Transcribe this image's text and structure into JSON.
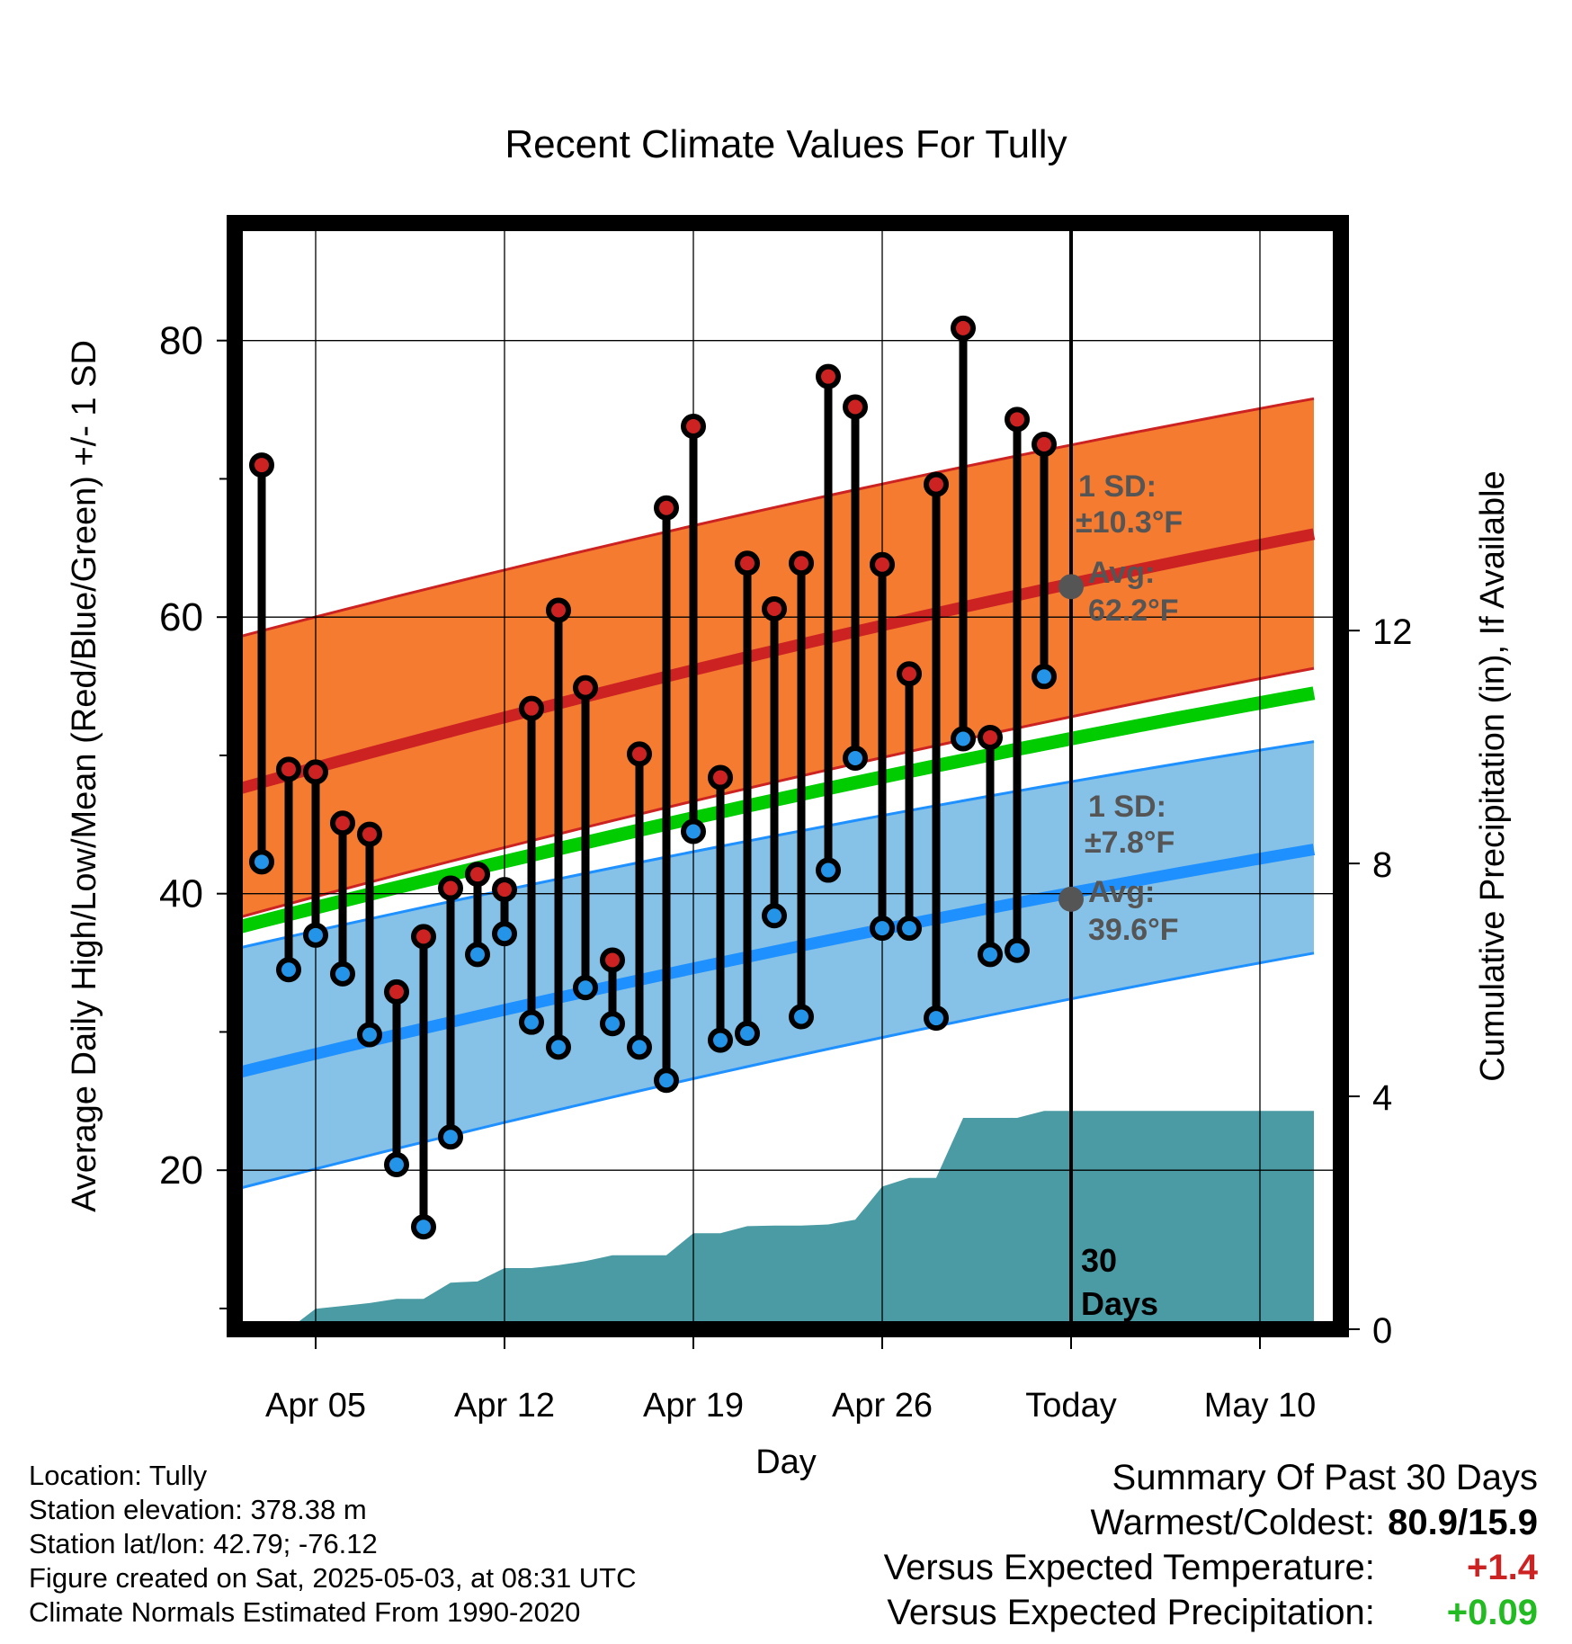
{
  "chart_data": {
    "type": "line",
    "title": "Recent Climate Values For Tully",
    "xlabel": "Day",
    "ylabel_left": "Average Daily High/Low/Mean (Red/Blue/Green) +/- 1 SD",
    "ylabel_right": "Cumulative Precipitation (in), If Available",
    "x_ticks": [
      "Apr 05",
      "Apr 12",
      "Apr 19",
      "Apr 26",
      "Today",
      "May 10"
    ],
    "y_left_ticks": [
      20,
      40,
      60,
      80
    ],
    "y_left_range": [
      8.5,
      88.5
    ],
    "y_right_ticks": [
      0,
      4,
      8,
      12
    ],
    "y_right_range": [
      0,
      19
    ],
    "today_label": "30 Days",
    "daily": [
      {
        "day": "Apr 03",
        "high": 71.0,
        "low": 42.3
      },
      {
        "day": "Apr 04",
        "high": 49.0,
        "low": 34.5
      },
      {
        "day": "Apr 05",
        "high": 48.8,
        "low": 37.0
      },
      {
        "day": "Apr 06",
        "high": 45.1,
        "low": 34.2
      },
      {
        "day": "Apr 07",
        "high": 44.3,
        "low": 29.8
      },
      {
        "day": "Apr 08",
        "high": 32.9,
        "low": 20.4
      },
      {
        "day": "Apr 09",
        "high": 36.9,
        "low": 15.9
      },
      {
        "day": "Apr 10",
        "high": 40.4,
        "low": 22.4
      },
      {
        "day": "Apr 11",
        "high": 41.4,
        "low": 35.6
      },
      {
        "day": "Apr 12",
        "high": 40.3,
        "low": 37.1
      },
      {
        "day": "Apr 13",
        "high": 53.4,
        "low": 30.7
      },
      {
        "day": "Apr 14",
        "high": 60.5,
        "low": 28.9
      },
      {
        "day": "Apr 15",
        "high": 54.9,
        "low": 33.2
      },
      {
        "day": "Apr 16",
        "high": 35.2,
        "low": 30.6
      },
      {
        "day": "Apr 17",
        "high": 50.1,
        "low": 28.9
      },
      {
        "day": "Apr 18",
        "high": 67.9,
        "low": 26.5
      },
      {
        "day": "Apr 19",
        "high": 73.8,
        "low": 44.5
      },
      {
        "day": "Apr 20",
        "high": 48.4,
        "low": 29.4
      },
      {
        "day": "Apr 21",
        "high": 63.9,
        "low": 29.9
      },
      {
        "day": "Apr 22",
        "high": 60.6,
        "low": 38.4
      },
      {
        "day": "Apr 23",
        "high": 63.9,
        "low": 31.1
      },
      {
        "day": "Apr 24",
        "high": 77.4,
        "low": 41.7
      },
      {
        "day": "Apr 25",
        "high": 75.2,
        "low": 49.8
      },
      {
        "day": "Apr 26",
        "high": 63.8,
        "low": 37.5
      },
      {
        "day": "Apr 27",
        "high": 55.9,
        "low": 37.5
      },
      {
        "day": "Apr 28",
        "high": 69.6,
        "low": 31.0
      },
      {
        "day": "Apr 29",
        "high": 80.9,
        "low": 51.2
      },
      {
        "day": "Apr 30",
        "high": 51.3,
        "low": 35.6
      },
      {
        "day": "May 01",
        "high": 74.3,
        "low": 35.9
      },
      {
        "day": "May 02",
        "high": 72.5,
        "low": 55.7
      }
    ],
    "normals": {
      "x": [
        "Apr 02",
        "May 12"
      ],
      "high_avg": [
        47.5,
        66.0
      ],
      "high_sd_upper": [
        58.5,
        75.8
      ],
      "high_sd_lower": [
        38.2,
        56.3
      ],
      "mean_avg": [
        37.5,
        54.5
      ],
      "low_avg": [
        27.0,
        43.2
      ],
      "low_sd_upper": [
        36.0,
        51.0
      ],
      "low_sd_lower": [
        18.6,
        35.7
      ]
    },
    "precip_cumulative": {
      "x": [
        "Apr 03",
        "Apr 04",
        "Apr 05",
        "Apr 06",
        "Apr 07",
        "Apr 08",
        "Apr 09",
        "Apr 10",
        "Apr 11",
        "Apr 12",
        "Apr 13",
        "Apr 14",
        "Apr 15",
        "Apr 16",
        "Apr 17",
        "Apr 18",
        "Apr 19",
        "Apr 20",
        "Apr 21",
        "Apr 22",
        "Apr 23",
        "Apr 24",
        "Apr 25",
        "Apr 26",
        "Apr 27",
        "Apr 28",
        "Apr 29",
        "Apr 30",
        "May 01",
        "May 02",
        "May 03",
        "May 12"
      ],
      "values": [
        0.0,
        0.0,
        0.35,
        0.4,
        0.45,
        0.52,
        0.52,
        0.8,
        0.82,
        1.05,
        1.05,
        1.1,
        1.17,
        1.27,
        1.27,
        1.27,
        1.65,
        1.65,
        1.77,
        1.78,
        1.78,
        1.8,
        1.88,
        2.45,
        2.6,
        2.6,
        3.63,
        3.63,
        3.63,
        3.75,
        3.75,
        3.75
      ]
    },
    "annotations": {
      "high_sd_label": "1 SD:",
      "high_sd_value": "±10.3°F",
      "high_avg_label": "Avg:",
      "high_avg_value": "62.2°F",
      "low_sd_label": "1 SD:",
      "low_sd_value": "±7.8°F",
      "low_avg_label": "Avg:",
      "low_avg_value": "39.6°F",
      "today_high_avg": 62.2,
      "today_low_avg": 39.6
    },
    "colors": {
      "high_band": "#f47b30",
      "high_line": "#cc2222",
      "low_band": "#86c1e7",
      "low_line": "#1e90ff",
      "mean_line": "#00cc00",
      "precip": "#4a9ba3",
      "high_marker": "#cc2222",
      "low_marker": "#2494e8",
      "annotation": "#555555"
    }
  },
  "info": {
    "location": "Location: Tully",
    "elevation": "Station elevation: 378.38 m",
    "latlon": "Station lat/lon: 42.79; -76.12",
    "created": "Figure created on Sat, 2025-05-03, at 08:31 UTC",
    "normals": "Climate Normals Estimated From 1990-2020"
  },
  "summary": {
    "heading": "Summary Of Past 30 Days",
    "warm_cold_label": "Warmest/Coldest:",
    "warm_cold_value": "80.9/15.9",
    "temp_label": "Versus Expected Temperature:",
    "temp_value": "+1.4",
    "temp_color": "#cc2222",
    "precip_label": "Versus Expected Precipitation:",
    "precip_value": "+0.09",
    "precip_color": "#22bb22"
  }
}
